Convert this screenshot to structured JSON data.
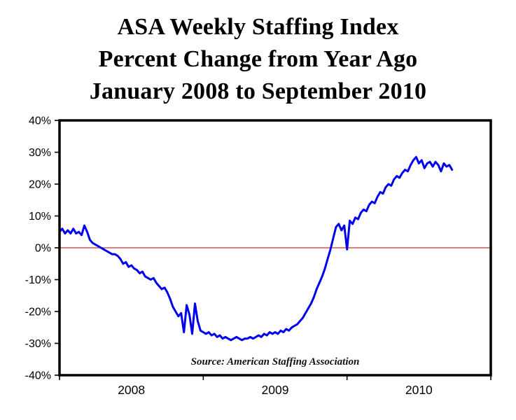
{
  "title_lines": [
    "ASA Weekly Staffing Index",
    "Percent Change from Year Ago",
    "January 2008 to September 2010"
  ],
  "source_note": "Source: American Staffing Association",
  "colors": {
    "line": "#0000ee",
    "zero_line": "#cc3333",
    "border": "#000000",
    "text": "#000000",
    "background": "#ffffff"
  },
  "chart_data": {
    "type": "line",
    "title": "ASA Weekly Staffing Index Percent Change from Year Ago, January 2008 to September 2010",
    "xlabel": "",
    "ylabel": "Percent change from year ago",
    "legend": "none",
    "grid": "off",
    "ylim": [
      -40,
      40
    ],
    "y_ticks": [
      40,
      30,
      20,
      10,
      0,
      -10,
      -20,
      -30,
      -40
    ],
    "y_tick_labels": [
      "40%",
      "30%",
      "20%",
      "10%",
      "0%",
      "-10%",
      "-20%",
      "-30%",
      "-40%"
    ],
    "x_domain_weeks": [
      0,
      156
    ],
    "x_year_ticks": [
      0,
      52,
      104,
      156
    ],
    "x_year_labels": [
      {
        "label": "2008",
        "week": 26
      },
      {
        "label": "2009",
        "week": 78
      },
      {
        "label": "2010",
        "week": 130
      }
    ],
    "zero_line_value": 0,
    "series": [
      {
        "name": "ASA Weekly Staffing Index, percent change from year ago",
        "x_start": "2008 week 1",
        "frequency": "weekly",
        "unit": "percent",
        "values": [
          5.0,
          6.0,
          4.5,
          5.5,
          4.5,
          6.0,
          4.5,
          5.0,
          4.0,
          7.0,
          5.0,
          2.5,
          1.5,
          1.0,
          0.5,
          0.0,
          -0.5,
          -1.0,
          -1.5,
          -2.0,
          -2.0,
          -2.5,
          -3.5,
          -5.0,
          -4.5,
          -6.0,
          -5.5,
          -6.5,
          -7.0,
          -8.0,
          -7.5,
          -9.0,
          -9.5,
          -10.0,
          -9.5,
          -11.0,
          -12.0,
          -13.0,
          -12.5,
          -14.0,
          -16.0,
          -18.5,
          -20.0,
          -21.5,
          -20.5,
          -26.5,
          -18.0,
          -21.0,
          -27.0,
          -17.5,
          -23.0,
          -26.0,
          -26.5,
          -27.0,
          -26.5,
          -27.5,
          -27.0,
          -28.0,
          -27.5,
          -28.5,
          -28.0,
          -28.5,
          -29.0,
          -28.5,
          -28.0,
          -28.5,
          -29.0,
          -28.5,
          -28.5,
          -28.0,
          -28.5,
          -28.0,
          -27.5,
          -28.0,
          -27.0,
          -27.5,
          -26.5,
          -27.0,
          -26.5,
          -27.0,
          -26.0,
          -26.5,
          -25.5,
          -26.0,
          -25.0,
          -24.5,
          -24.0,
          -23.0,
          -22.0,
          -20.5,
          -19.0,
          -17.5,
          -15.5,
          -13.0,
          -11.0,
          -9.0,
          -6.5,
          -3.5,
          -0.5,
          3.0,
          6.5,
          7.5,
          5.5,
          7.0,
          -0.5,
          8.5,
          7.5,
          9.5,
          9.0,
          11.0,
          12.0,
          11.5,
          13.5,
          14.5,
          14.0,
          16.0,
          17.5,
          17.0,
          19.0,
          20.0,
          19.5,
          21.5,
          22.5,
          22.0,
          23.5,
          24.5,
          24.0,
          26.0,
          27.5,
          28.5,
          26.5,
          27.5,
          25.0,
          26.5,
          27.0,
          25.5,
          27.0,
          26.0,
          24.0,
          26.5,
          25.5,
          26.0,
          24.5
        ]
      }
    ]
  }
}
